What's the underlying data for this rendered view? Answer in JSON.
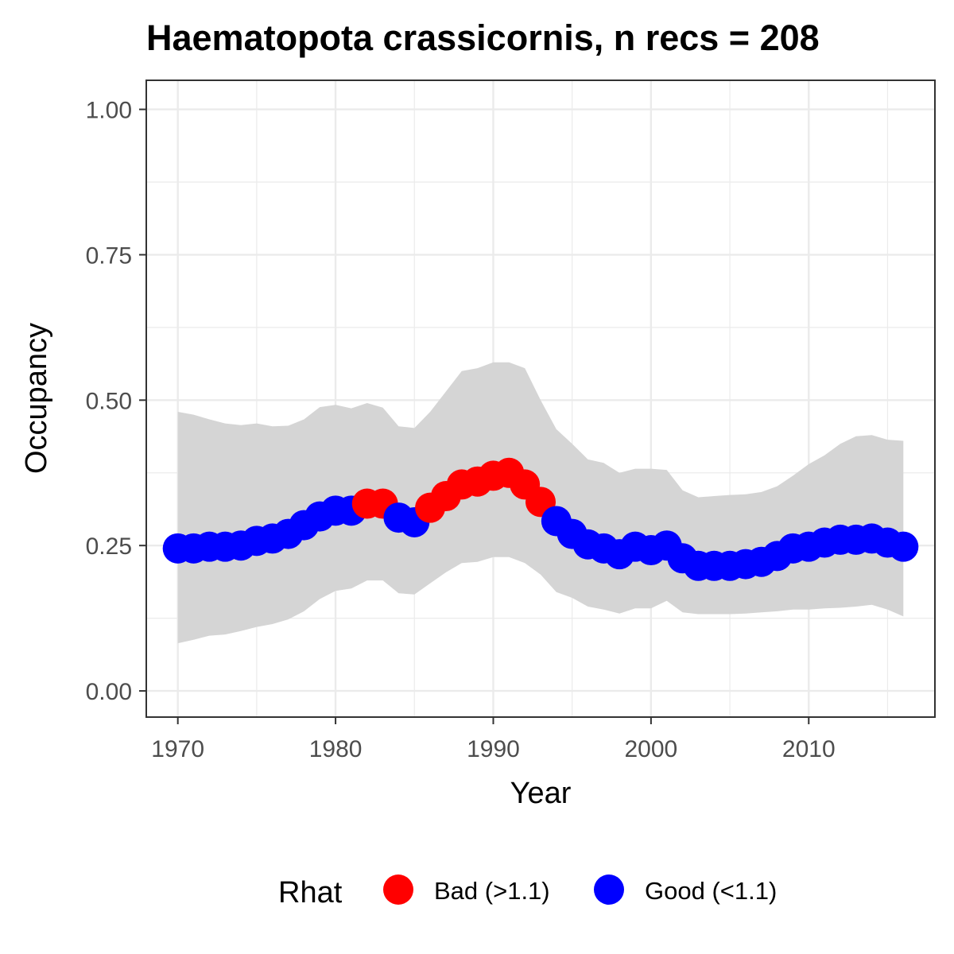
{
  "chart_data": {
    "type": "line",
    "title": "Haematopota crassicornis, n recs = 208",
    "xlabel": "Year",
    "ylabel": "Occupancy",
    "xlim": [
      1968,
      2018
    ],
    "ylim": [
      -0.045,
      1.05
    ],
    "xticks": [
      1970,
      1980,
      1990,
      2000,
      2010
    ],
    "xtick_labels": [
      "1970",
      "1980",
      "1990",
      "2000",
      "2010"
    ],
    "yticks": [
      0,
      0.25,
      0.5,
      0.75,
      1.0
    ],
    "ytick_labels": [
      "0.00",
      "0.25",
      "0.50",
      "0.75",
      "1.00"
    ],
    "grid": true,
    "legend": {
      "title": "Rhat",
      "position": "bottom",
      "entries": [
        {
          "key": "bad",
          "label": "Bad (>1.1)",
          "color": "#ff0000"
        },
        {
          "key": "good",
          "label": "Good (<1.1)",
          "color": "#0000ff"
        }
      ]
    },
    "colors": {
      "bad": "#ff0000",
      "good": "#0000ff",
      "ribbon": "#d5d5d5"
    },
    "x": [
      1970,
      1971,
      1972,
      1973,
      1974,
      1975,
      1976,
      1977,
      1978,
      1979,
      1980,
      1981,
      1982,
      1983,
      1984,
      1985,
      1986,
      1987,
      1988,
      1989,
      1990,
      1991,
      1992,
      1993,
      1994,
      1995,
      1996,
      1997,
      1998,
      1999,
      2000,
      2001,
      2002,
      2003,
      2004,
      2005,
      2006,
      2007,
      2008,
      2009,
      2010,
      2011,
      2012,
      2013,
      2014,
      2015,
      2016
    ],
    "mean": [
      0.245,
      0.245,
      0.248,
      0.248,
      0.25,
      0.258,
      0.262,
      0.27,
      0.285,
      0.3,
      0.31,
      0.31,
      0.322,
      0.322,
      0.298,
      0.29,
      0.315,
      0.335,
      0.355,
      0.36,
      0.37,
      0.375,
      0.355,
      0.325,
      0.292,
      0.27,
      0.252,
      0.245,
      0.235,
      0.248,
      0.242,
      0.25,
      0.228,
      0.215,
      0.215,
      0.215,
      0.218,
      0.222,
      0.232,
      0.245,
      0.248,
      0.255,
      0.26,
      0.26,
      0.262,
      0.255,
      0.248
    ],
    "lower": [
      0.082,
      0.088,
      0.095,
      0.097,
      0.103,
      0.11,
      0.115,
      0.123,
      0.137,
      0.158,
      0.172,
      0.176,
      0.19,
      0.19,
      0.168,
      0.166,
      0.185,
      0.204,
      0.22,
      0.222,
      0.23,
      0.23,
      0.22,
      0.2,
      0.17,
      0.16,
      0.145,
      0.14,
      0.133,
      0.142,
      0.142,
      0.155,
      0.135,
      0.132,
      0.132,
      0.132,
      0.133,
      0.135,
      0.137,
      0.14,
      0.14,
      0.142,
      0.143,
      0.145,
      0.148,
      0.14,
      0.128
    ],
    "upper": [
      0.48,
      0.475,
      0.467,
      0.46,
      0.457,
      0.46,
      0.455,
      0.456,
      0.467,
      0.488,
      0.492,
      0.486,
      0.495,
      0.487,
      0.455,
      0.452,
      0.48,
      0.515,
      0.55,
      0.555,
      0.565,
      0.565,
      0.555,
      0.5,
      0.45,
      0.425,
      0.398,
      0.392,
      0.375,
      0.382,
      0.382,
      0.38,
      0.345,
      0.333,
      0.335,
      0.337,
      0.338,
      0.342,
      0.352,
      0.37,
      0.39,
      0.405,
      0.425,
      0.438,
      0.44,
      0.432,
      0.43
    ],
    "rhat": [
      "good",
      "good",
      "good",
      "good",
      "good",
      "good",
      "good",
      "good",
      "good",
      "good",
      "good",
      "good",
      "bad",
      "bad",
      "good",
      "good",
      "bad",
      "bad",
      "bad",
      "bad",
      "bad",
      "bad",
      "bad",
      "bad",
      "good",
      "good",
      "good",
      "good",
      "good",
      "good",
      "good",
      "good",
      "good",
      "good",
      "good",
      "good",
      "good",
      "good",
      "good",
      "good",
      "good",
      "good",
      "good",
      "good",
      "good",
      "good",
      "good"
    ]
  }
}
